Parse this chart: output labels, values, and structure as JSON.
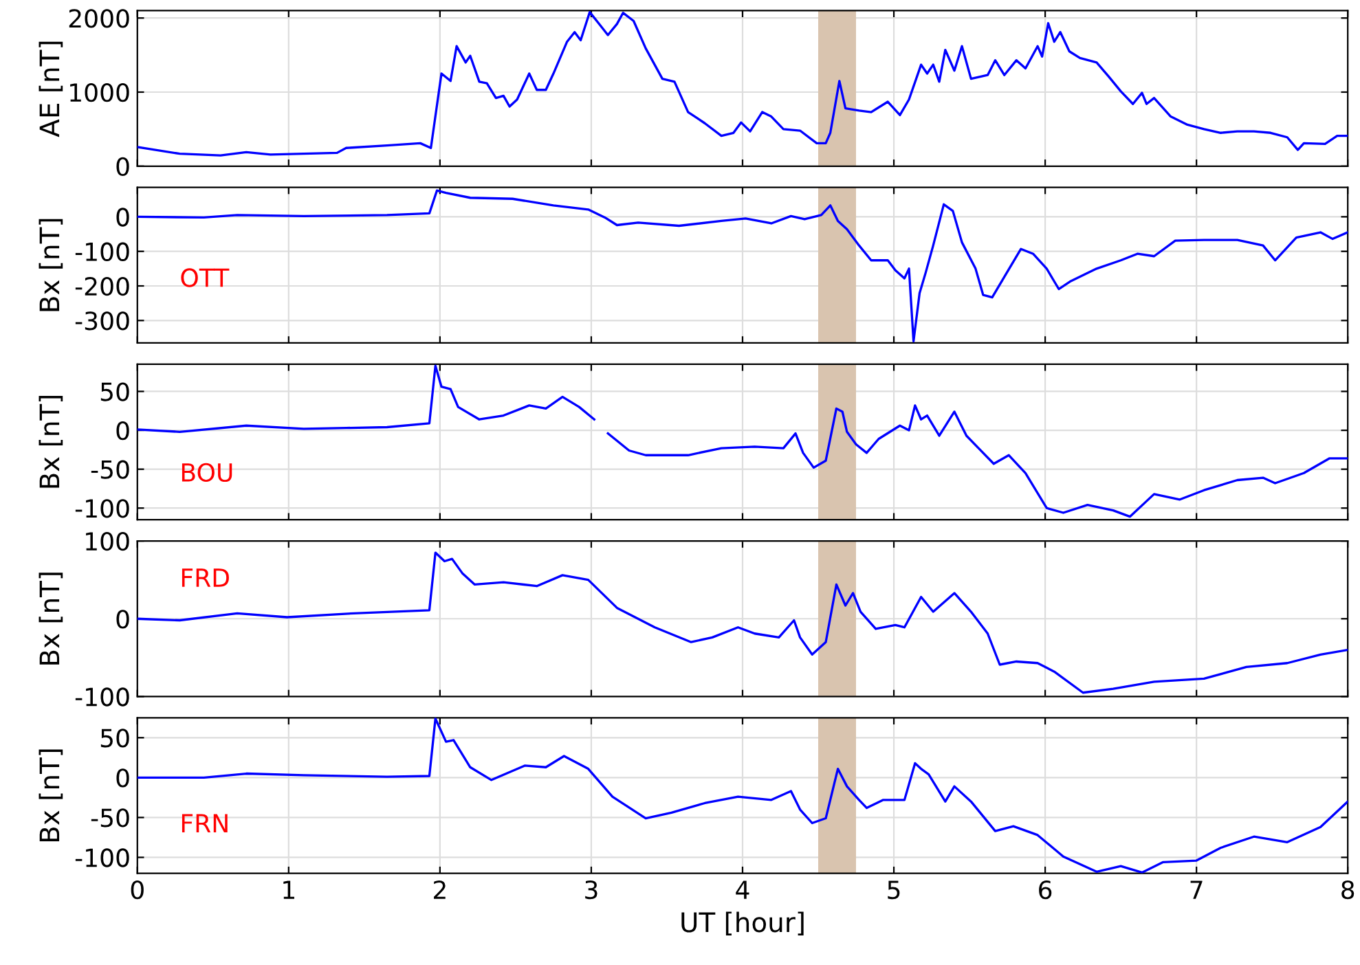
{
  "chart_data": [
    {
      "type": "line",
      "ylabel": "AE [nT]",
      "xlim": [
        0,
        8
      ],
      "xticks": [
        0,
        1,
        2,
        3,
        4,
        5,
        6,
        7,
        8
      ],
      "ylim": [
        0,
        2100
      ],
      "yticks": [
        0,
        1000,
        2000
      ],
      "grid": true,
      "tick_labels": "y",
      "bands": [
        {
          "axis": "x",
          "from": 4.5,
          "to": 4.75,
          "color": "#d9c4af"
        }
      ],
      "series": [
        {
          "color": "#0000ff",
          "x": [
            0,
            0.28,
            0.55,
            0.72,
            0.88,
            1.1,
            1.32,
            1.38,
            1.65,
            1.87,
            1.94,
            2.01,
            2.07,
            2.11,
            2.17,
            2.2,
            2.26,
            2.31,
            2.37,
            2.42,
            2.46,
            2.51,
            2.59,
            2.64,
            2.7,
            2.75,
            2.84,
            2.89,
            2.93,
            2.99,
            3.06,
            3.11,
            3.17,
            3.21,
            3.28,
            3.36,
            3.47,
            3.55,
            3.64,
            3.75,
            3.86,
            3.94,
            3.99,
            4.05,
            4.13,
            4.19,
            4.27,
            4.38,
            4.49,
            4.55,
            4.58,
            4.64,
            4.68,
            4.77,
            4.85,
            4.96,
            5.04,
            5.1,
            5.18,
            5.22,
            5.26,
            5.3,
            5.34,
            5.4,
            5.45,
            5.51,
            5.62,
            5.67,
            5.73,
            5.81,
            5.87,
            5.95,
            5.98,
            6.02,
            6.06,
            6.1,
            6.16,
            6.23,
            6.34,
            6.42,
            6.5,
            6.58,
            6.64,
            6.67,
            6.72,
            6.83,
            6.94,
            7.05,
            7.16,
            7.27,
            7.38,
            7.49,
            7.6,
            7.67,
            7.71,
            7.85,
            7.93,
            8
          ],
          "values": [
            258,
            168,
            145,
            190,
            157,
            168,
            180,
            246,
            280,
            310,
            246,
            1250,
            1150,
            1620,
            1400,
            1490,
            1140,
            1120,
            920,
            950,
            805,
            900,
            1250,
            1030,
            1030,
            1250,
            1680,
            1810,
            1700,
            2080,
            1900,
            1770,
            1920,
            2070,
            1960,
            1590,
            1180,
            1140,
            730,
            580,
            410,
            450,
            590,
            470,
            730,
            670,
            500,
            480,
            310,
            310,
            450,
            1150,
            780,
            750,
            730,
            870,
            690,
            900,
            1370,
            1250,
            1370,
            1140,
            1570,
            1290,
            1620,
            1180,
            1230,
            1430,
            1230,
            1430,
            1320,
            1620,
            1480,
            1930,
            1680,
            1810,
            1550,
            1460,
            1400,
            1210,
            1010,
            840,
            990,
            840,
            920,
            670,
            560,
            500,
            450,
            470,
            470,
            450,
            390,
            220,
            310,
            300,
            410,
            410
          ]
        }
      ]
    },
    {
      "type": "line",
      "ylabel": "Bx [nT]",
      "xlim": [
        0,
        8
      ],
      "xticks": [
        0,
        1,
        2,
        3,
        4,
        5,
        6,
        7,
        8
      ],
      "ylim": [
        -365,
        85
      ],
      "yticks": [
        -300,
        -200,
        -100,
        0
      ],
      "grid": true,
      "tick_labels": "y",
      "bands": [
        {
          "axis": "x",
          "from": 4.5,
          "to": 4.75,
          "color": "#d9c4af"
        }
      ],
      "series": [
        {
          "name": "OTT",
          "color": "#0000ff",
          "x": [
            0,
            0.44,
            0.66,
            1.1,
            1.65,
            1.93,
            1.98,
            2.04,
            2.2,
            2.48,
            2.75,
            2.98,
            3.09,
            3.17,
            3.31,
            3.58,
            3.86,
            4.02,
            4.19,
            4.32,
            4.41,
            4.52,
            4.58,
            4.63,
            4.69,
            4.77,
            4.85,
            4.96,
            5.01,
            5.07,
            5.1,
            5.13,
            5.17,
            5.21,
            5.26,
            5.33,
            5.39,
            5.45,
            5.54,
            5.59,
            5.65,
            5.73,
            5.84,
            5.92,
            6.01,
            6.09,
            6.17,
            6.34,
            6.5,
            6.61,
            6.72,
            6.86,
            7.05,
            7.27,
            7.44,
            7.52,
            7.66,
            7.82,
            7.9,
            8
          ],
          "values": [
            0,
            -2,
            5,
            2,
            5,
            10,
            76,
            69,
            55,
            52,
            33,
            21,
            -2,
            -24,
            -17,
            -26,
            -12,
            -5,
            -19,
            2,
            -7,
            5,
            33,
            -12,
            -36,
            -83,
            -126,
            -126,
            -155,
            -178,
            -150,
            -360,
            -221,
            -162,
            -83,
            36,
            17,
            -74,
            -150,
            -226,
            -233,
            -174,
            -93,
            -107,
            -150,
            -209,
            -186,
            -150,
            -126,
            -107,
            -114,
            -69,
            -67,
            -67,
            -83,
            -126,
            -60,
            -45,
            -64,
            -45
          ]
        }
      ]
    },
    {
      "type": "line",
      "ylabel": "Bx [nT]",
      "xlim": [
        0,
        8
      ],
      "xticks": [
        0,
        1,
        2,
        3,
        4,
        5,
        6,
        7,
        8
      ],
      "ylim": [
        -115,
        85
      ],
      "yticks": [
        -100,
        -50,
        0,
        50
      ],
      "grid": true,
      "tick_labels": "y",
      "bands": [
        {
          "axis": "x",
          "from": 4.5,
          "to": 4.75,
          "color": "#d9c4af"
        }
      ],
      "series": [
        {
          "name": "BOU",
          "color": "#0000ff",
          "x": [
            0,
            0.28,
            0.72,
            1.1,
            1.38,
            1.65,
            1.93,
            1.97,
            2.01,
            2.07,
            2.12,
            2.26,
            2.42,
            2.59,
            2.7,
            2.81,
            2.92,
            3.02,
            3.05,
            3.11,
            3.25,
            3.36,
            3.64,
            3.86,
            4.08,
            4.27,
            4.35,
            4.4,
            4.47,
            4.55,
            4.62,
            4.66,
            4.69,
            4.75,
            4.82,
            4.9,
            5.04,
            5.1,
            5.14,
            5.18,
            5.22,
            5.3,
            5.4,
            5.48,
            5.56,
            5.66,
            5.76,
            5.87,
            6.01,
            6.12,
            6.28,
            6.45,
            6.56,
            6.72,
            6.89,
            7.05,
            7.27,
            7.44,
            7.52,
            7.71,
            7.88,
            8
          ],
          "values": [
            1,
            -2,
            6,
            2,
            3,
            4,
            9,
            83,
            56,
            53,
            30,
            14,
            19,
            32,
            28,
            43,
            30,
            14,
            null,
            -4,
            -26,
            -32,
            -32,
            -23,
            -21,
            -23,
            -4,
            -29,
            -48,
            -39,
            28,
            24,
            -2,
            -18,
            -29,
            -11,
            6,
            0,
            32,
            14,
            19,
            -7,
            24,
            -7,
            -23,
            -43,
            -32,
            -55,
            -100,
            -106,
            -96,
            -103,
            -111,
            -82,
            -89,
            -77,
            -64,
            -61,
            -68,
            -55,
            -36,
            -36
          ]
        }
      ]
    },
    {
      "type": "line",
      "ylabel": "Bx [nT]",
      "xlim": [
        0,
        8
      ],
      "xticks": [
        0,
        1,
        2,
        3,
        4,
        5,
        6,
        7,
        8
      ],
      "ylim": [
        -100,
        100
      ],
      "yticks": [
        -100,
        0,
        100
      ],
      "grid": true,
      "tick_labels": "y",
      "bands": [
        {
          "axis": "x",
          "from": 4.5,
          "to": 4.75,
          "color": "#d9c4af"
        }
      ],
      "series": [
        {
          "name": "FRD",
          "color": "#0000ff",
          "x": [
            0,
            0.28,
            0.66,
            0.99,
            1.43,
            1.93,
            1.97,
            2.03,
            2.08,
            2.15,
            2.23,
            2.42,
            2.64,
            2.81,
            2.98,
            3.17,
            3.42,
            3.66,
            3.8,
            3.97,
            4.08,
            4.24,
            4.34,
            4.38,
            4.46,
            4.55,
            4.62,
            4.68,
            4.73,
            4.78,
            4.88,
            5.01,
            5.07,
            5.18,
            5.26,
            5.4,
            5.51,
            5.62,
            5.7,
            5.81,
            5.95,
            6.06,
            6.25,
            6.45,
            6.72,
            7.05,
            7.33,
            7.6,
            7.82,
            8
          ],
          "values": [
            0,
            -2,
            7,
            2,
            7,
            11,
            85,
            74,
            77,
            58,
            44,
            47,
            42,
            56,
            50,
            14,
            -11,
            -30,
            -24,
            -11,
            -19,
            -24,
            -2,
            -24,
            -46,
            -30,
            44,
            17,
            33,
            9,
            -13,
            -8,
            -11,
            28,
            9,
            33,
            9,
            -19,
            -59,
            -55,
            -57,
            -68,
            -95,
            -90,
            -81,
            -77,
            -62,
            -57,
            -46,
            -40
          ]
        }
      ]
    },
    {
      "type": "line",
      "ylabel": "Bx [nT]",
      "xlabel": "UT [hour]",
      "xlim": [
        0,
        8
      ],
      "xticks": [
        0,
        1,
        2,
        3,
        4,
        5,
        6,
        7,
        8
      ],
      "ylim": [
        -120,
        75
      ],
      "yticks": [
        -100,
        -50,
        0,
        50
      ],
      "grid": true,
      "bands": [
        {
          "axis": "x",
          "from": 4.5,
          "to": 4.75,
          "color": "#d9c4af"
        }
      ],
      "series": [
        {
          "name": "FRN",
          "color": "#0000ff",
          "x": [
            0,
            0.44,
            0.72,
            1.1,
            1.65,
            1.93,
            1.97,
            2.04,
            2.09,
            2.2,
            2.34,
            2.56,
            2.7,
            2.82,
            2.98,
            3.14,
            3.36,
            3.53,
            3.75,
            3.97,
            4.19,
            4.32,
            4.38,
            4.46,
            4.55,
            4.63,
            4.69,
            4.77,
            4.82,
            4.93,
            5.07,
            5.14,
            5.18,
            5.23,
            5.34,
            5.4,
            5.51,
            5.67,
            5.79,
            5.95,
            6.12,
            6.34,
            6.5,
            6.64,
            6.78,
            7.0,
            7.16,
            7.38,
            7.6,
            7.82,
            8
          ],
          "values": [
            0,
            0,
            5,
            3,
            1,
            2,
            74,
            45,
            47,
            13,
            -3,
            15,
            13,
            27,
            11,
            -24,
            -51,
            -44,
            -32,
            -24,
            -28,
            -17,
            -40,
            -57,
            -51,
            11,
            -11,
            -28,
            -38,
            -28,
            -28,
            18,
            11,
            4,
            -30,
            -11,
            -30,
            -67,
            -61,
            -72,
            -99,
            -118,
            -111,
            -119,
            -106,
            -104,
            -88,
            -74,
            -81,
            -62,
            -30
          ]
        }
      ]
    }
  ]
}
